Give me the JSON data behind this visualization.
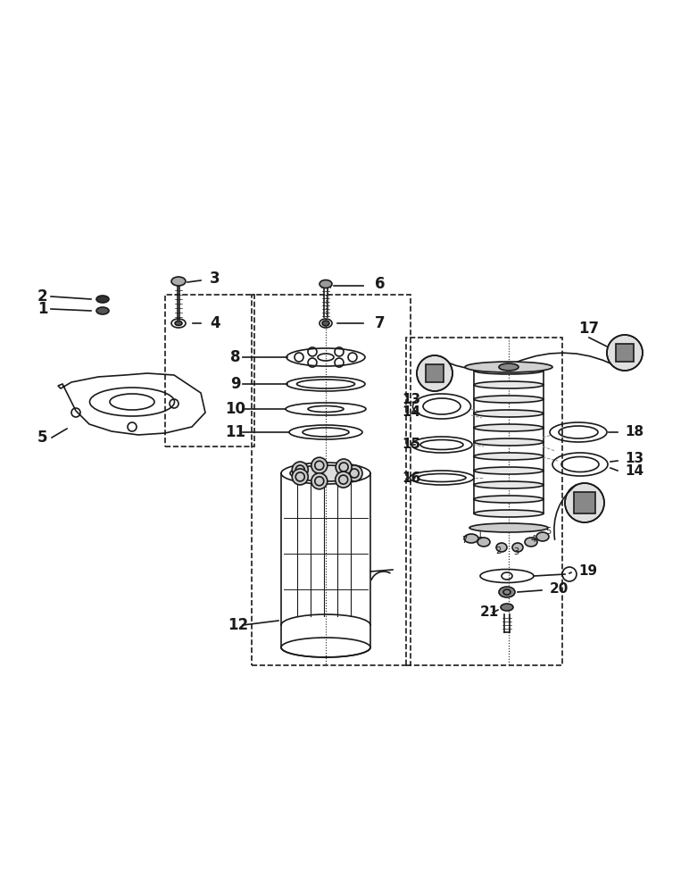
{
  "bg_color": "#ffffff",
  "line_color": "#1a1a1a",
  "fig_width": 7.72,
  "fig_height": 10.0,
  "dpi": 100
}
